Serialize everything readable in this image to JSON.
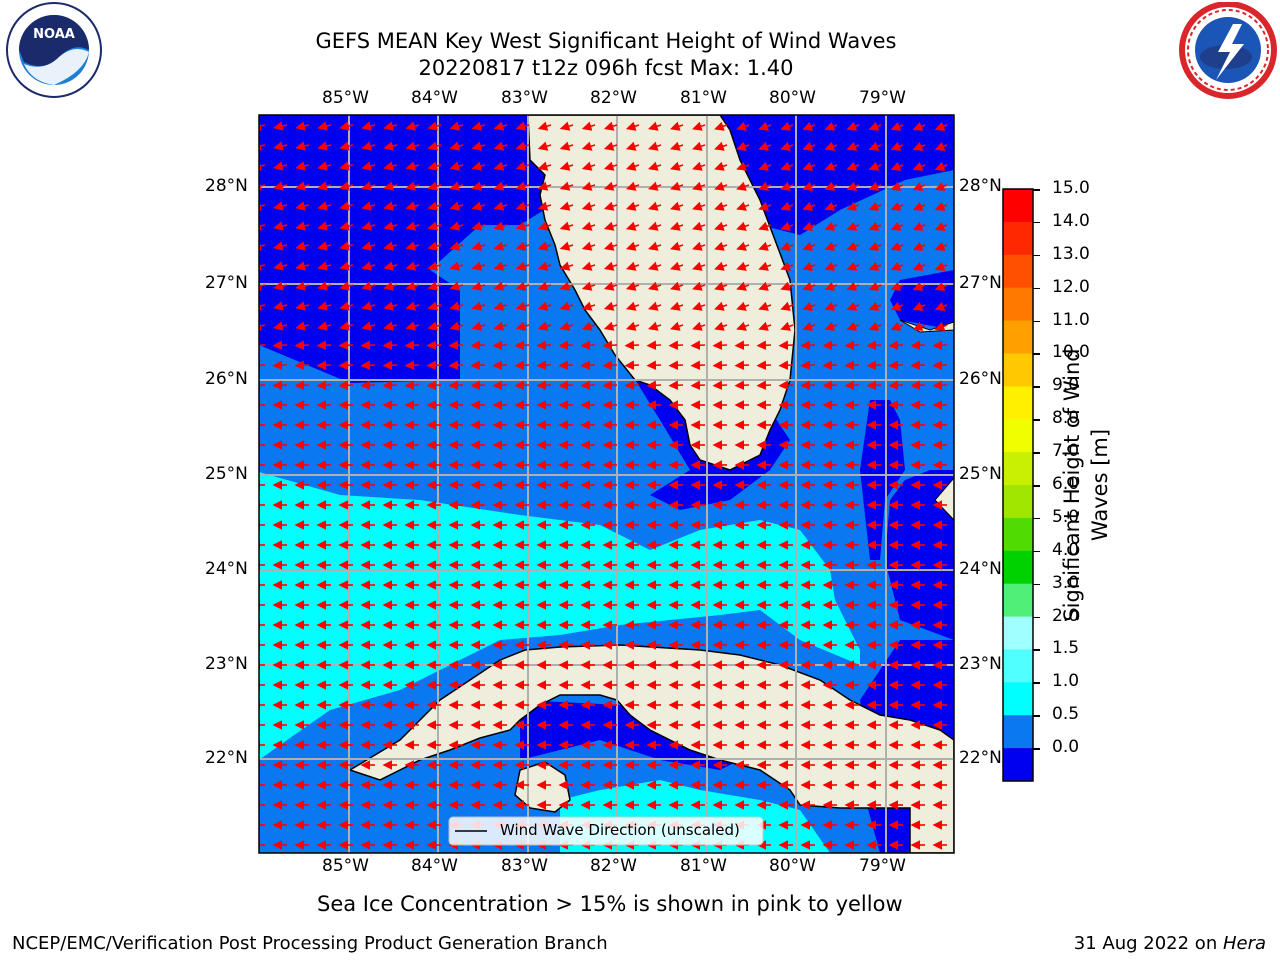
{
  "header": {
    "title_line1": "GEFS MEAN Key West Significant Height of Wind Waves",
    "title_line2": "20220817 t12z 096h fcst   Max: 1.40"
  },
  "logos": {
    "left": "NOAA",
    "right": "NATIONAL WEATHER SERVICE"
  },
  "map": {
    "lon_labels": [
      "85°W",
      "84°W",
      "83°W",
      "82°W",
      "81°W",
      "80°W",
      "79°W"
    ],
    "lat_labels": [
      "28°N",
      "27°N",
      "26°N",
      "25°N",
      "24°N",
      "23°N",
      "22°N"
    ],
    "legend_label": "Wind Wave Direction (unscaled)",
    "colors": {
      "band_0_0.5": "#0000f0",
      "band_0.5_1.0": "#0a78f0",
      "band_1.0_1.5": "#00ffff",
      "land": "#efeedd",
      "arrow": "#ff0000",
      "grid": "#b0b0b0"
    }
  },
  "colorbar": {
    "label_line1": "Significant Height of Wind",
    "label_line2": "Waves [m]",
    "ticks": [
      "15.0",
      "14.0",
      "13.0",
      "12.0",
      "11.0",
      "10.0",
      "9.0",
      "8.0",
      "7.0",
      "6.0",
      "5.0",
      "4.0",
      "3.0",
      "2.0",
      "1.5",
      "1.0",
      "0.5",
      "0.0"
    ],
    "colors": [
      "#ff0000",
      "#ff2800",
      "#ff5000",
      "#ff7800",
      "#ffa000",
      "#ffc800",
      "#fff000",
      "#f0ff00",
      "#c8f000",
      "#a0e600",
      "#50dc00",
      "#00d200",
      "#50f078",
      "#a0ffff",
      "#50ffff",
      "#00ffff",
      "#0a78f0",
      "#0000f0"
    ]
  },
  "footer": {
    "note": "Sea Ice Concentration > 15% is shown in pink to yellow",
    "left": "NCEP/EMC/Verification Post Processing Product Generation Branch",
    "right_date": "31 Aug 2022 on ",
    "right_machine": "Hera"
  }
}
